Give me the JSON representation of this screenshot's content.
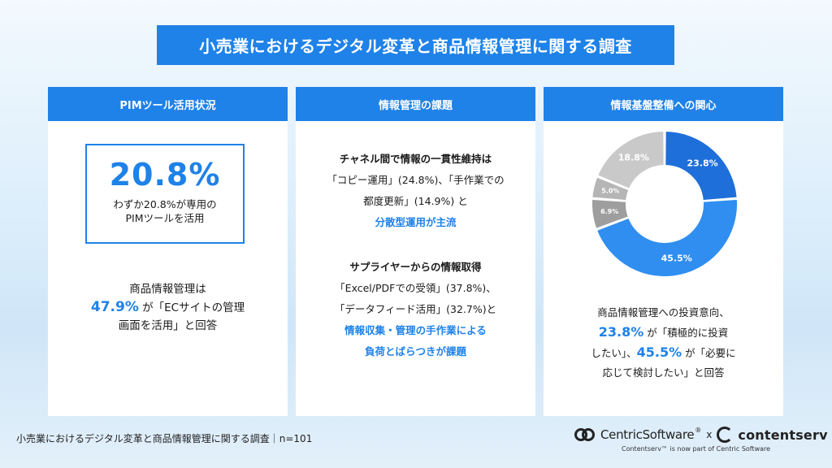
{
  "title": "小売業におけるデジタル変革と商品情報管理に関する調査",
  "panel1": {
    "heading": "PIMツール活用状況",
    "big_value": "20.8%",
    "box_line1": "わずか20.8%が専用の",
    "box_line2": "PIMツールを活用",
    "text_line1": "商品情報管理は",
    "highlight": "47.9%",
    "text_line2_suffix": " が「ECサイトの管理",
    "text_line3": "画面を活用」と回答"
  },
  "panel2": {
    "heading": "情報管理の課題",
    "block1": {
      "title": "チャネル間で情報の一貫性維持は",
      "line1": "「コピー運用」(24.8%)、「手作業での",
      "line2": "都度更新」(14.9%) と",
      "highlight": "分散型運用が主流"
    },
    "block2": {
      "title": "サプライヤーからの情報取得",
      "line1": "「Excel/PDFでの受領」(37.8%)、",
      "line2": "「データフィード活用」(32.7%)と",
      "highlight1": "情報収集・管理の手作業による",
      "highlight2": "負荷とばらつきが課題"
    }
  },
  "panel3": {
    "heading": "情報基盤整備への関心",
    "text_line1": "商品情報管理への投資意向、",
    "hl1": "23.8%",
    "text_line2_suffix": " が「積極的に投資",
    "text_line3_prefix": "したい」、",
    "hl2": "45.5%",
    "text_line3_suffix": " が「必要に",
    "text_line4": "応じて検討したい」と回答"
  },
  "chart_data": {
    "type": "pie",
    "donut": true,
    "values": [
      23.8,
      45.5,
      6.9,
      5.0,
      18.8
    ],
    "labels": [
      "23.8%",
      "45.5%",
      "6.9%",
      "5.0%",
      "18.8%"
    ],
    "colors": [
      "#1e6fd9",
      "#2f8ef0",
      "#9e9e9e",
      "#b5b5b5",
      "#c9c9c9"
    ],
    "label_colors": [
      "#ffffff",
      "#ffffff",
      "#ffffff",
      "#ffffff",
      "#ffffff"
    ]
  },
  "footer": {
    "source": "小売業におけるデジタル変革と商品情報管理に関する調査｜n=101",
    "logo1": "CentricSoftware",
    "logo1_tm": "®",
    "x": "x",
    "logo2": "contentserv",
    "note": "Contentserv™ is now part of Centric Software"
  }
}
